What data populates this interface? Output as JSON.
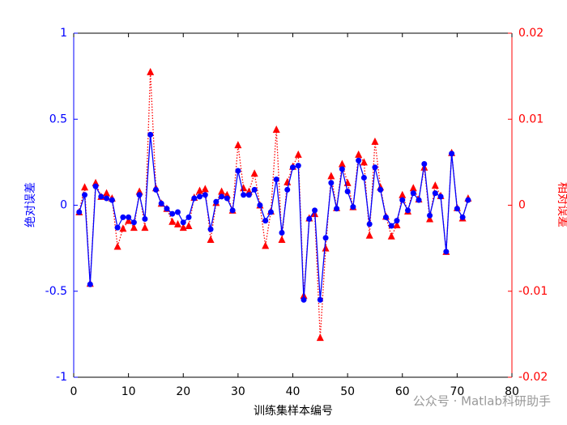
{
  "chart_data": {
    "type": "line",
    "xlabel": "训练集样本编号",
    "ylabel": "绝对误差",
    "y2label": "相对误差",
    "annotation": "公众号 · Matlab科研助手",
    "x": [
      1,
      2,
      3,
      4,
      5,
      6,
      7,
      8,
      9,
      10,
      11,
      12,
      13,
      14,
      15,
      16,
      17,
      18,
      19,
      20,
      21,
      22,
      23,
      24,
      25,
      26,
      27,
      28,
      29,
      30,
      31,
      32,
      33,
      34,
      35,
      36,
      37,
      38,
      39,
      40,
      41,
      42,
      43,
      44,
      45,
      46,
      47,
      48,
      49,
      50,
      51,
      52,
      53,
      54,
      55,
      56,
      57,
      58,
      59,
      60,
      61,
      62,
      63,
      64,
      65,
      66,
      67,
      68,
      69,
      70,
      71,
      72
    ],
    "series": [
      {
        "name": "绝对误差",
        "color": "#0000ff",
        "axis": "y",
        "values": [
          -0.04,
          0.06,
          -0.46,
          0.11,
          0.05,
          0.04,
          0.03,
          -0.13,
          -0.07,
          -0.07,
          -0.1,
          0.06,
          -0.08,
          0.41,
          0.09,
          0.01,
          -0.02,
          -0.05,
          -0.04,
          -0.1,
          -0.07,
          0.04,
          0.05,
          0.06,
          -0.14,
          0.02,
          0.05,
          0.04,
          -0.03,
          0.2,
          0.06,
          0.06,
          0.09,
          0.0,
          -0.09,
          -0.04,
          0.15,
          -0.16,
          0.09,
          0.22,
          0.23,
          -0.55,
          -0.08,
          -0.03,
          -0.55,
          -0.19,
          0.13,
          -0.02,
          0.21,
          0.08,
          -0.01,
          0.26,
          0.16,
          -0.11,
          0.22,
          0.09,
          -0.07,
          -0.12,
          -0.09,
          0.03,
          -0.03,
          0.07,
          0.03,
          0.24,
          -0.06,
          0.07,
          0.05,
          -0.27,
          0.3,
          -0.02,
          -0.07,
          0.03
        ]
      },
      {
        "name": "相对误差",
        "color": "#ff0000",
        "axis": "y2",
        "values": [
          -0.0008,
          0.0021,
          -0.0091,
          0.0026,
          0.001,
          0.0014,
          0.0008,
          -0.0048,
          -0.0027,
          -0.0018,
          -0.0026,
          0.0016,
          -0.0026,
          0.0155,
          0.002,
          0.0002,
          -0.0004,
          -0.0019,
          -0.0022,
          -0.0026,
          -0.0024,
          0.0009,
          0.0017,
          0.0019,
          -0.004,
          0.0003,
          0.0016,
          0.0012,
          -0.0006,
          0.007,
          0.002,
          0.0016,
          0.0037,
          0,
          -0.0047,
          -0.0007,
          0.0088,
          -0.004,
          0.0027,
          0.0045,
          0.0059,
          -0.0105,
          -0.0015,
          -0.001,
          -0.0154,
          -0.005,
          0.0034,
          -0.0003,
          0.0048,
          0.0026,
          -0.0002,
          0.0059,
          0.005,
          -0.0035,
          0.0074,
          0.0021,
          -0.0013,
          -0.0036,
          -0.0023,
          0.0012,
          -0.0007,
          0.002,
          0.0007,
          0.0044,
          -0.0016,
          0.0023,
          0.0011,
          -0.0054,
          0.0061,
          -0.0003,
          -0.0015,
          0.0008
        ]
      }
    ],
    "xlim": [
      0,
      80
    ],
    "xticks": [
      0,
      10,
      20,
      30,
      40,
      50,
      60,
      70,
      80
    ],
    "ylim": [
      -1,
      1
    ],
    "yticks": [
      -1,
      -0.5,
      0,
      0.5,
      1
    ],
    "y2lim": [
      -0.02,
      0.02
    ],
    "y2ticks": [
      -0.02,
      -0.01,
      0,
      0.01,
      0.02
    ]
  }
}
